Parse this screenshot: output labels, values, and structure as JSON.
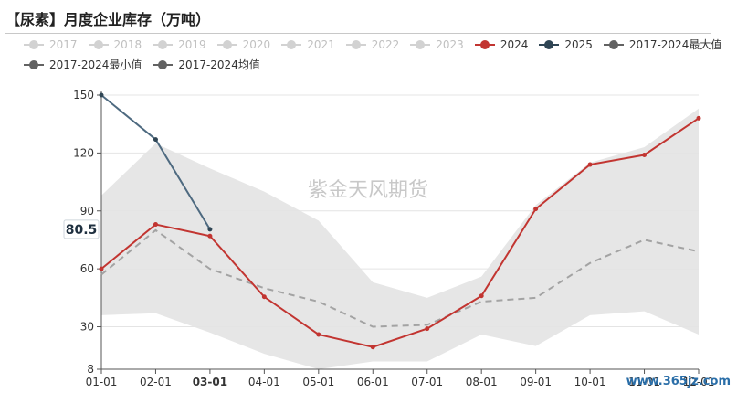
{
  "header": {
    "title": "【尿素】月度企业库存（万吨）"
  },
  "watermark": "紫金天风期货",
  "site_mark": "www.365jz.com",
  "colors": {
    "s2024": "#c23531",
    "s2025": "#2f4554",
    "max": "#626262",
    "min": "#626262",
    "avg": "#626262",
    "band": "#e6e6e6",
    "inactive": "#d2d2d2"
  },
  "legend": [
    {
      "label": "2017",
      "active": false
    },
    {
      "label": "2018",
      "active": false
    },
    {
      "label": "2019",
      "active": false
    },
    {
      "label": "2020",
      "active": false
    },
    {
      "label": "2021",
      "active": false
    },
    {
      "label": "2022",
      "active": false
    },
    {
      "label": "2023",
      "active": false
    },
    {
      "label": "2024",
      "active": true,
      "color": "#c23531"
    },
    {
      "label": "2025",
      "active": true,
      "color": "#2f4554"
    },
    {
      "label": "2017-2024最大值",
      "active": true,
      "color": "#626262"
    },
    {
      "label": "2017-2024最小值",
      "active": true,
      "color": "#626262"
    },
    {
      "label": "2017-2024均值",
      "active": true,
      "color": "#626262"
    }
  ],
  "chart_data": {
    "type": "line",
    "categories": [
      "01-01",
      "02-01",
      "03-01",
      "04-01",
      "05-01",
      "06-01",
      "07-01",
      "08-01",
      "09-01",
      "10-01",
      "11-01",
      "12-01"
    ],
    "highlight_category": "03-01",
    "yticks": [
      8,
      30,
      60,
      90,
      120,
      150
    ],
    "ylim": [
      8,
      150
    ],
    "grid": true,
    "value_badge": "80.5",
    "series": [
      {
        "name": "2024",
        "values": [
          60,
          83,
          77,
          45.5,
          26,
          19.5,
          29,
          46,
          91,
          114,
          119,
          138
        ]
      },
      {
        "name": "2025",
        "values": [
          150,
          127,
          80.5,
          null,
          null,
          null,
          null,
          null,
          null,
          null,
          null,
          null
        ]
      },
      {
        "name": "2017-2024最大值",
        "values": [
          98,
          125,
          112,
          100,
          85,
          53,
          45,
          56,
          93,
          115,
          123,
          143
        ]
      },
      {
        "name": "2017-2024最小值",
        "values": [
          36,
          37,
          27,
          16,
          8,
          12,
          12,
          26,
          20,
          36,
          38,
          26
        ]
      },
      {
        "name": "2017-2024均值",
        "values": [
          57,
          80,
          60,
          50,
          43,
          30,
          31,
          43,
          45,
          63,
          75,
          69
        ]
      }
    ]
  }
}
